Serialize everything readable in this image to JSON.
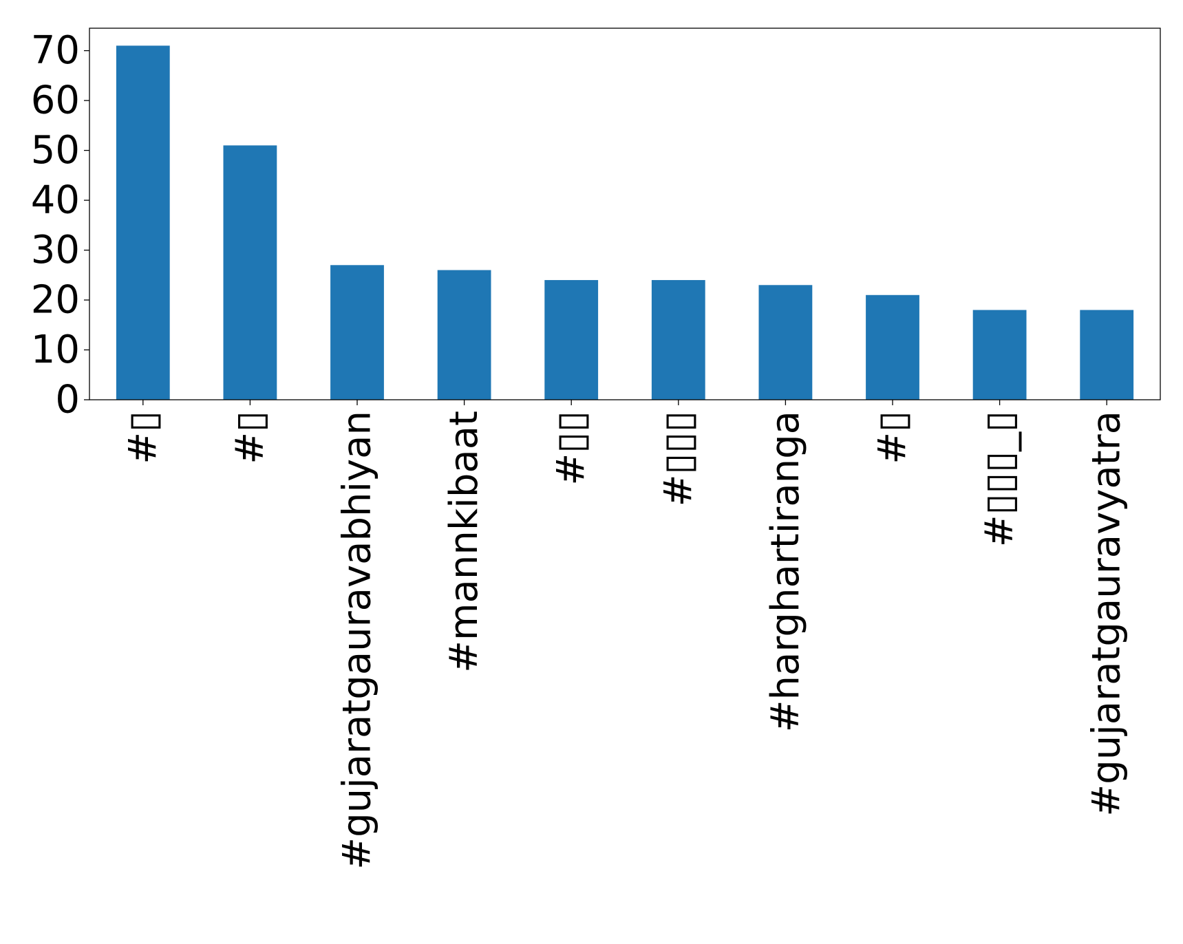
{
  "chart_data": {
    "type": "bar",
    "title": "",
    "xlabel": "",
    "ylabel": "",
    "categories": [
      "#▯",
      "#▯",
      "#gujaratgauravabhiyan",
      "#mannkibaat",
      "#▯▯",
      "#▯▯▯",
      "#harghartiranga",
      "#▯",
      "#▯▯▯_▯",
      "#gujaratgauravyatra"
    ],
    "values": [
      71,
      51,
      27,
      26,
      24,
      24,
      23,
      21,
      18,
      18
    ],
    "ylim": [
      0,
      74.5
    ],
    "yticks": [
      0,
      10,
      20,
      30,
      40,
      50,
      60,
      70
    ],
    "grid": false,
    "bar_color": "#1f77b4",
    "axis_color": "#000000"
  }
}
